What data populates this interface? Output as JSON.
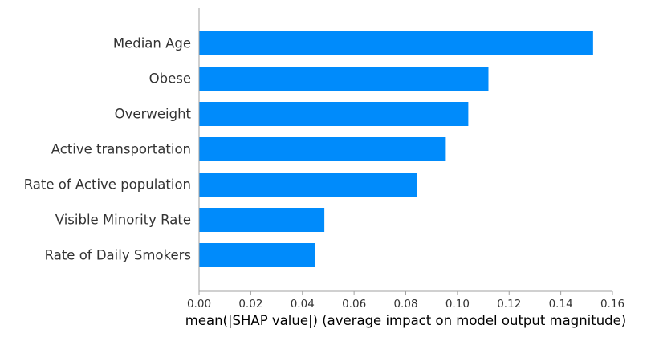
{
  "chart_data": {
    "type": "bar",
    "orientation": "horizontal",
    "categories": [
      "Median Age",
      "Obese",
      "Overweight",
      "Active transportation",
      "Rate of Active population",
      "Visible Minority Rate",
      "Rate of Daily Smokers"
    ],
    "values": [
      0.1525,
      0.112,
      0.1042,
      0.0955,
      0.0843,
      0.0485,
      0.045
    ],
    "xlabel": "mean(|SHAP value|) (average impact on model output magnitude)",
    "ylabel": "",
    "xlim": [
      0,
      0.16
    ],
    "xticks": [
      0.0,
      0.02,
      0.04,
      0.06,
      0.08,
      0.1,
      0.12,
      0.14,
      0.16
    ],
    "xtick_labels": [
      "0.00",
      "0.02",
      "0.04",
      "0.06",
      "0.08",
      "0.10",
      "0.12",
      "0.14",
      "0.16"
    ],
    "grid": false,
    "bar_color": "#008bfb"
  }
}
